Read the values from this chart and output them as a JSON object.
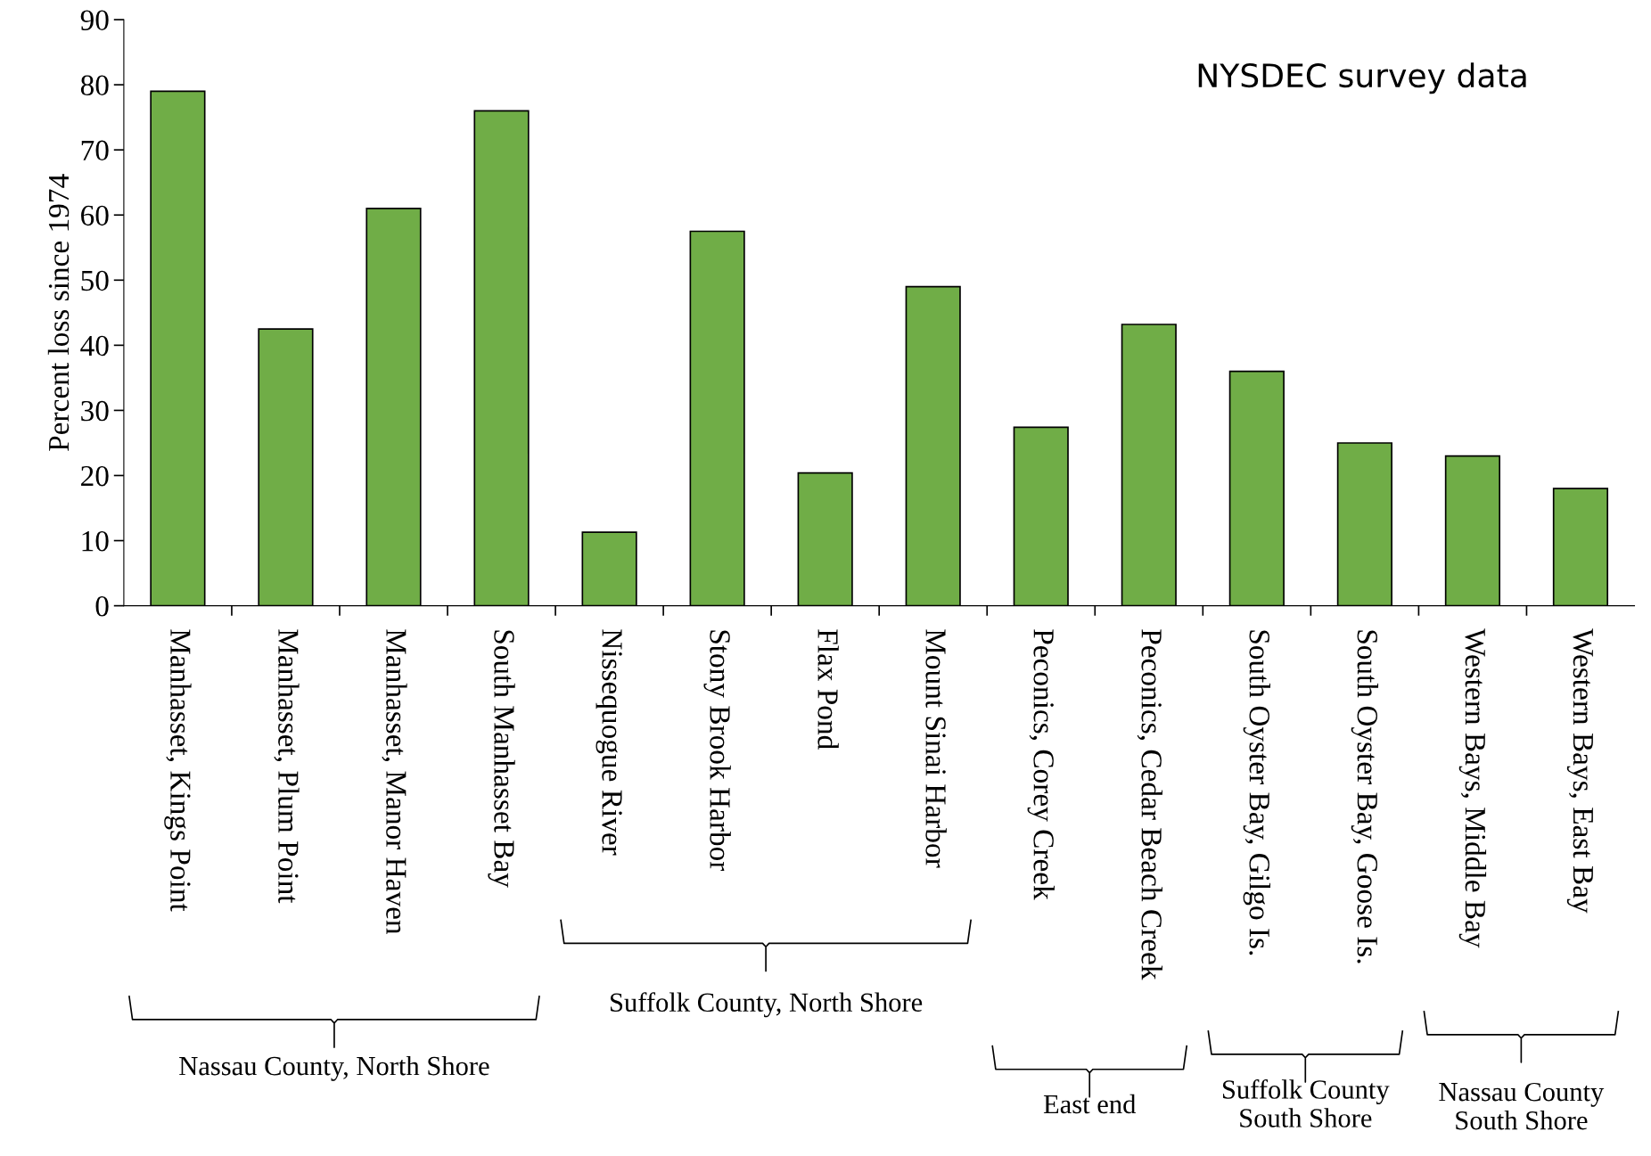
{
  "chart_data": {
    "type": "bar",
    "ylabel": "Percent loss since 1974",
    "categories": [
      "Manhasset, Kings Point",
      "Manhasset, Plum Point",
      "Manhasset, Manor Haven",
      "South Manhasset Bay",
      "Nissequogue River",
      "Stony Brook Harbor",
      "Flax Pond",
      "Mount Sinai Harbor",
      "Peconics, Corey Creek",
      "Peconics, Cedar Beach Creek",
      "South Oyster Bay, Gilgo Is.",
      "South Oyster Bay, Goose Is.",
      "Western Bays, Middle Bay",
      "Western Bays, East Bay"
    ],
    "values": [
      79,
      42.5,
      61,
      76,
      11.3,
      57.5,
      20.4,
      49,
      27.4,
      43.2,
      36,
      25,
      23,
      18
    ],
    "color": "#70ad47",
    "ylim": [
      0,
      90
    ],
    "yticks": [
      0,
      10,
      20,
      30,
      40,
      50,
      60,
      70,
      80,
      90
    ],
    "grid": false,
    "annotations": [
      "NYSDEC survey data",
      "Nassau County, North Shore",
      "Suffolk County, North Shore",
      "East end",
      "Suffolk County\nSouth Shore",
      "Nassau County\nSouth Shore"
    ]
  }
}
